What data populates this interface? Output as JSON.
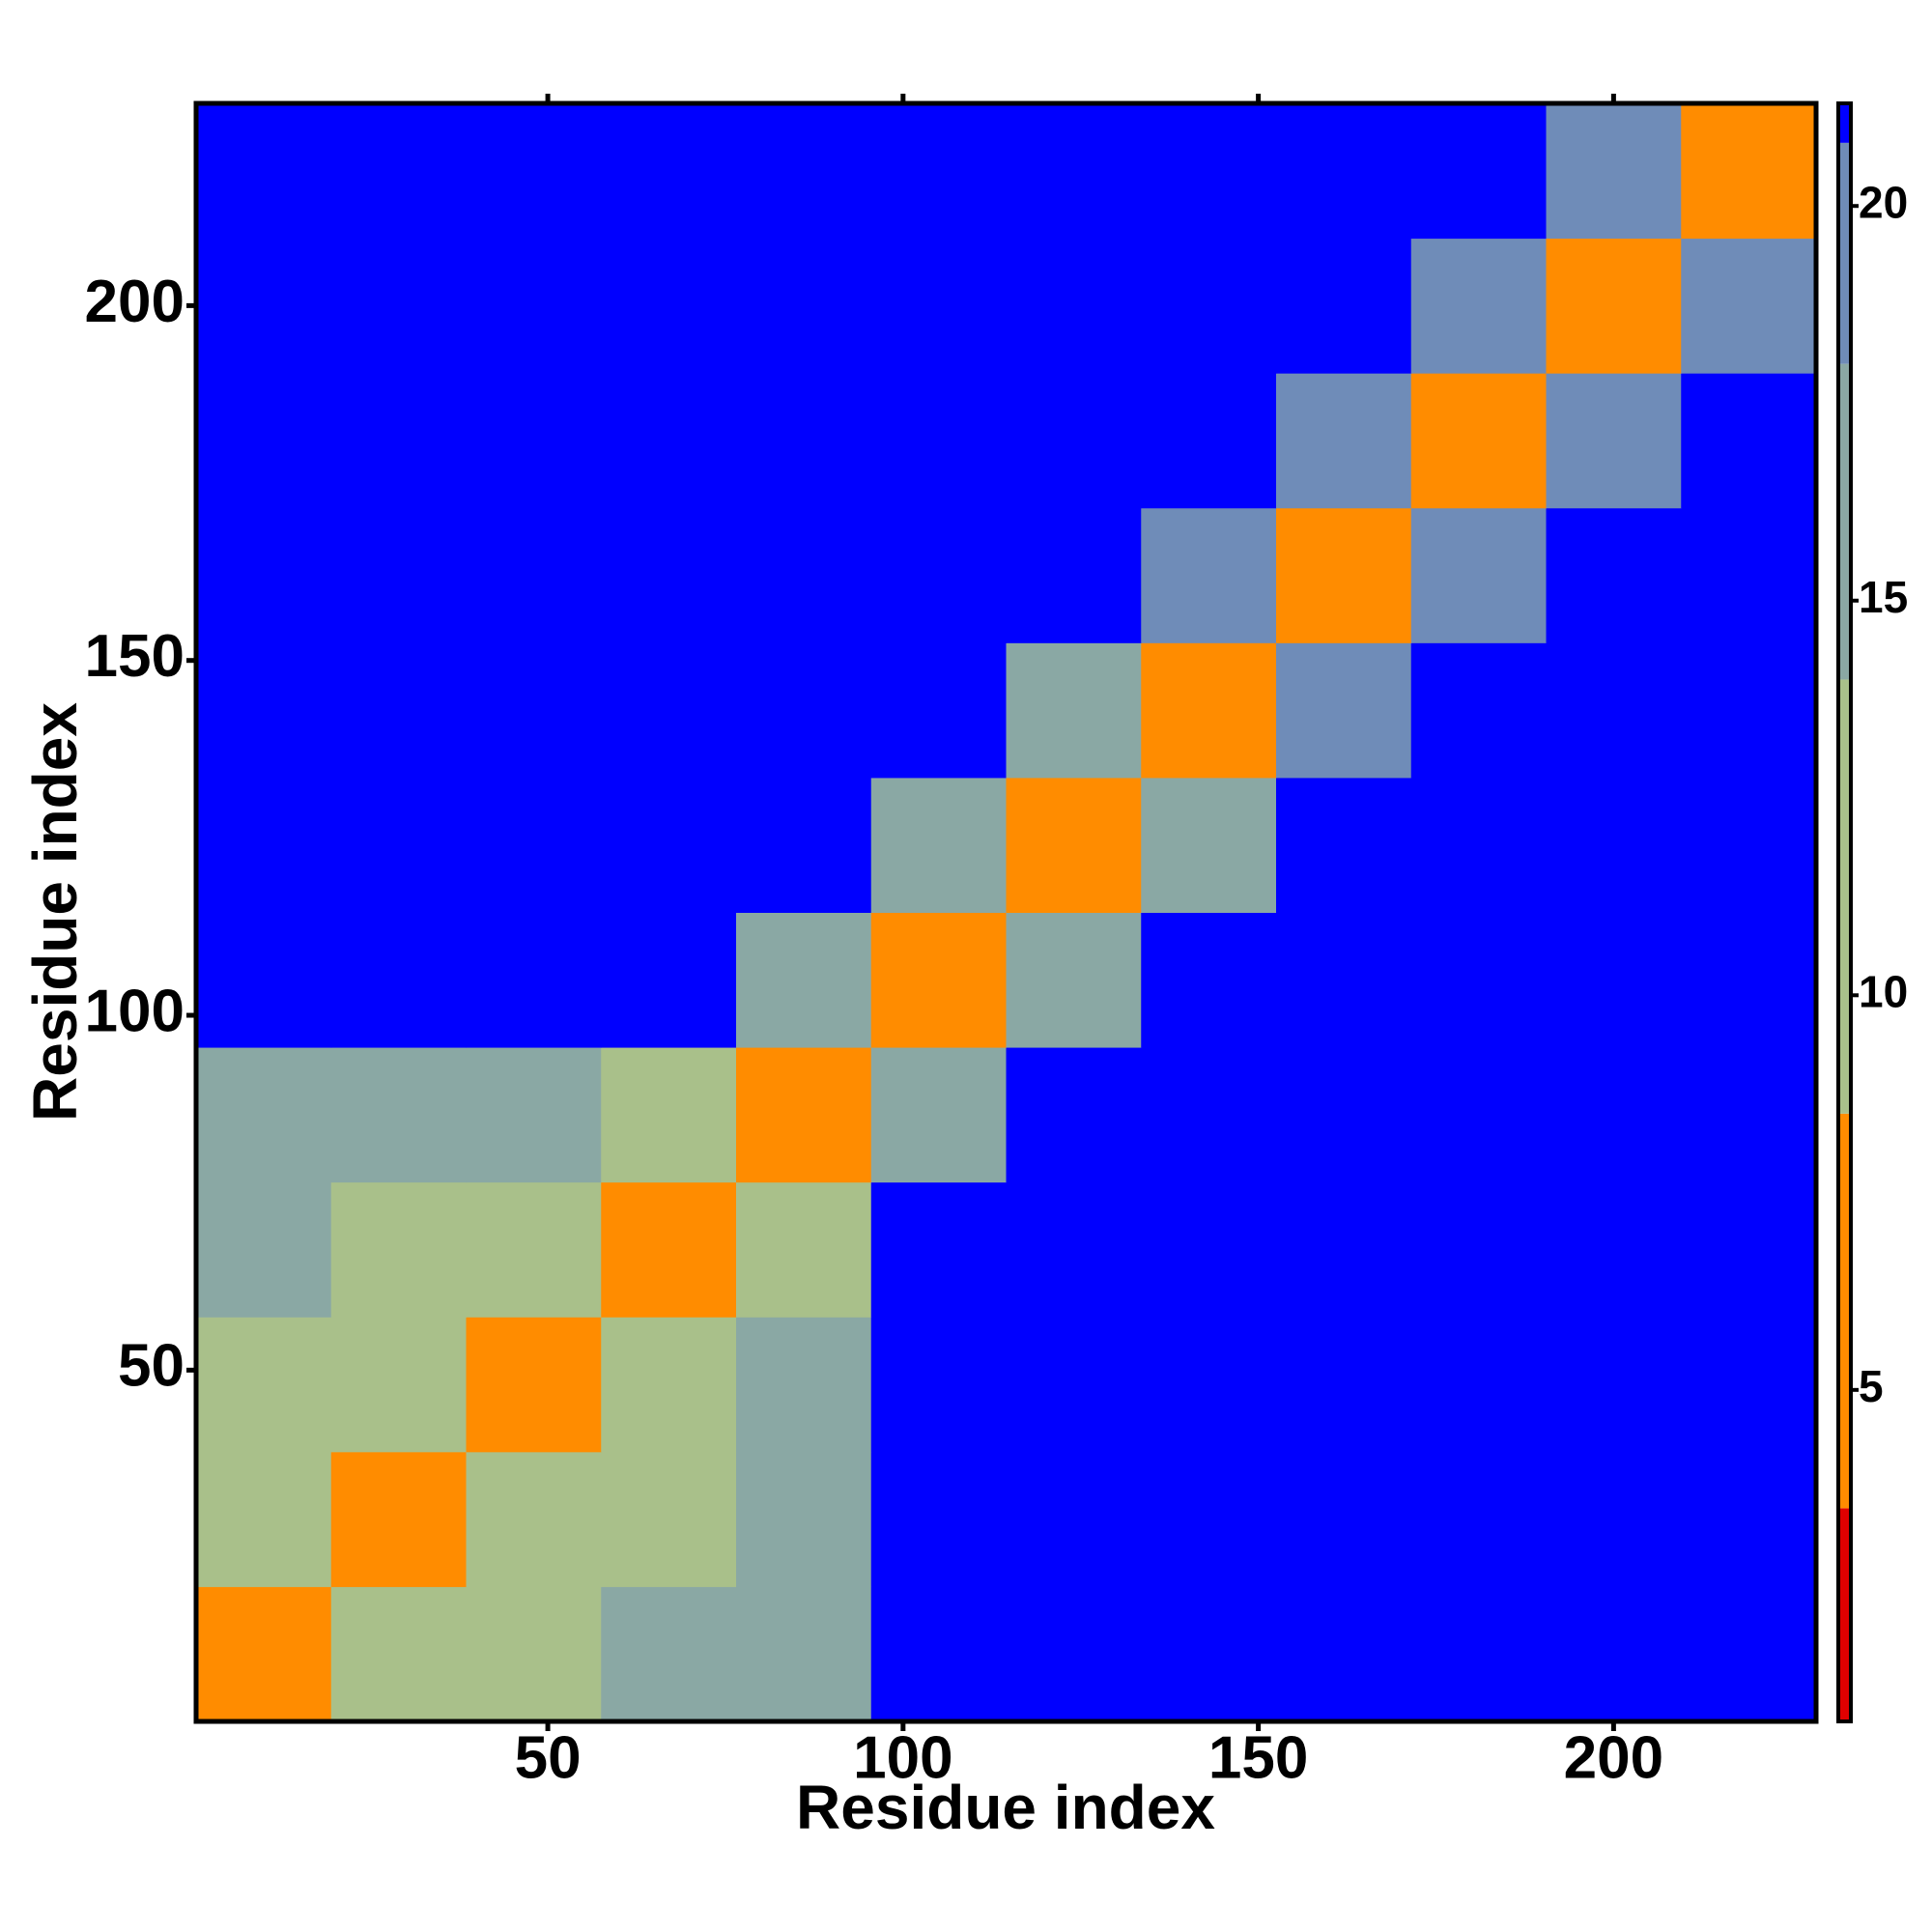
{
  "chart_data": {
    "type": "heatmap",
    "xlabel": "Residue index",
    "ylabel": "Residue index",
    "bins": [
      0.5,
      19.5,
      38.5,
      57.5,
      76.5,
      95.5,
      114.5,
      133.5,
      152.5,
      171.5,
      190.5,
      209.5,
      228.5
    ],
    "values": [
      [
        4,
        12,
        13,
        14,
        17,
        21,
        21,
        21,
        21,
        21,
        21,
        21
      ],
      [
        12,
        4,
        12,
        13,
        15,
        21,
        21,
        21,
        21,
        21,
        21,
        21
      ],
      [
        13,
        12,
        4,
        12,
        14,
        21,
        21,
        21,
        21,
        21,
        21,
        21
      ],
      [
        14,
        13,
        12,
        4,
        10,
        21,
        21,
        21,
        21,
        21,
        21,
        21
      ],
      [
        17,
        15,
        14,
        10,
        4,
        16,
        21,
        21,
        21,
        21,
        21,
        21
      ],
      [
        21,
        21,
        21,
        21,
        16,
        4,
        15,
        21,
        21,
        21,
        21,
        21
      ],
      [
        21,
        21,
        21,
        21,
        21,
        15,
        4,
        16,
        21,
        21,
        21,
        21
      ],
      [
        21,
        21,
        21,
        21,
        21,
        21,
        16,
        4,
        18,
        21,
        21,
        21
      ],
      [
        21,
        21,
        21,
        21,
        21,
        21,
        21,
        18,
        4,
        18,
        21,
        21
      ],
      [
        21,
        21,
        21,
        21,
        21,
        21,
        21,
        21,
        18,
        4,
        18,
        21
      ],
      [
        21,
        21,
        21,
        21,
        21,
        21,
        21,
        21,
        21,
        18,
        4,
        18
      ],
      [
        21,
        21,
        21,
        21,
        21,
        21,
        21,
        21,
        21,
        21,
        18,
        4
      ]
    ],
    "xlim": [
      0.5,
      228.5
    ],
    "ylim": [
      0.5,
      228.5
    ],
    "xticks": [
      50,
      100,
      150,
      200
    ],
    "yticks": [
      50,
      100,
      150,
      200
    ],
    "zlim": [
      0.8,
      21.3
    ],
    "zticks": [
      5,
      10,
      15,
      20
    ],
    "colorscale": [
      [
        0.8,
        "#e00000"
      ],
      [
        3.5,
        "#ff8c00"
      ],
      [
        8.5,
        "#a9c08a"
      ],
      [
        14,
        "#8aa8a4"
      ],
      [
        18,
        "#6f8cb8"
      ],
      [
        20.8,
        "#0000ff"
      ]
    ]
  }
}
